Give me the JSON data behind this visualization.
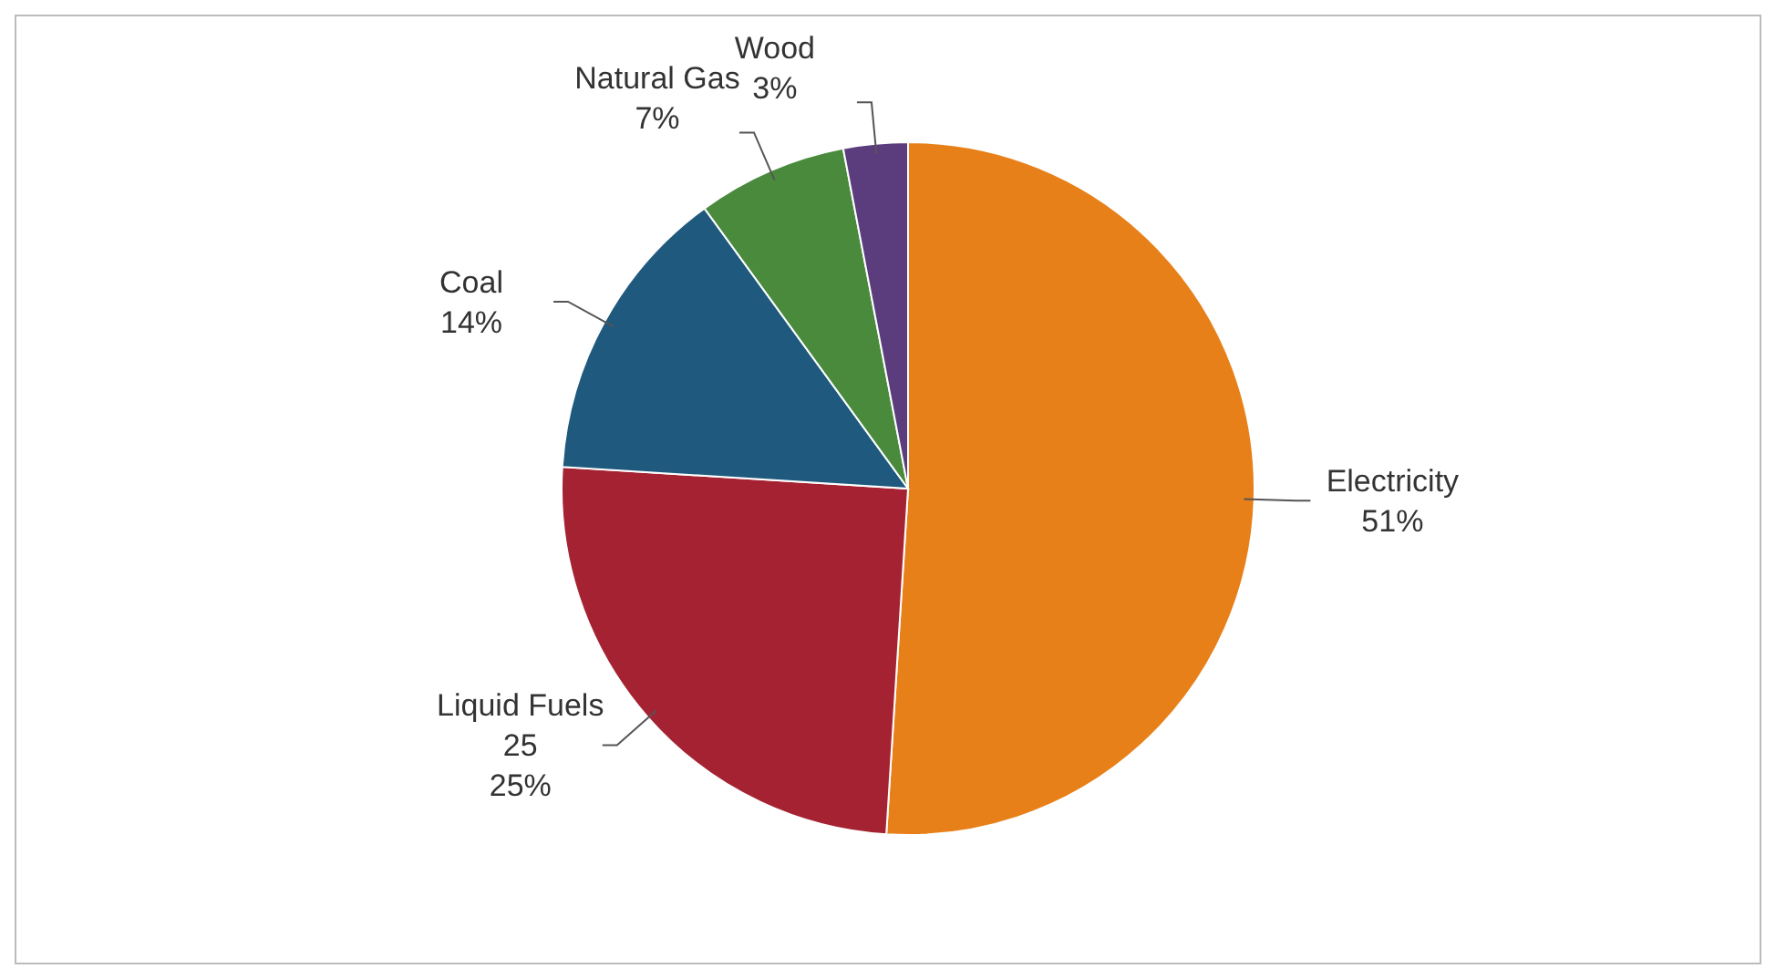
{
  "chart_data": {
    "type": "pie",
    "categories": [
      "Electricity",
      "Liquid Fuels",
      "Coal",
      "Natural Gas",
      "Wood"
    ],
    "values": [
      51,
      25,
      14,
      7,
      3
    ],
    "colors": [
      "#e8801a",
      "#a52232",
      "#1f5a7e",
      "#4a8a3c",
      "#5b3d7d"
    ],
    "value_labels": [
      "51%",
      "25\n25%",
      "14%",
      "7%",
      "3%"
    ]
  }
}
